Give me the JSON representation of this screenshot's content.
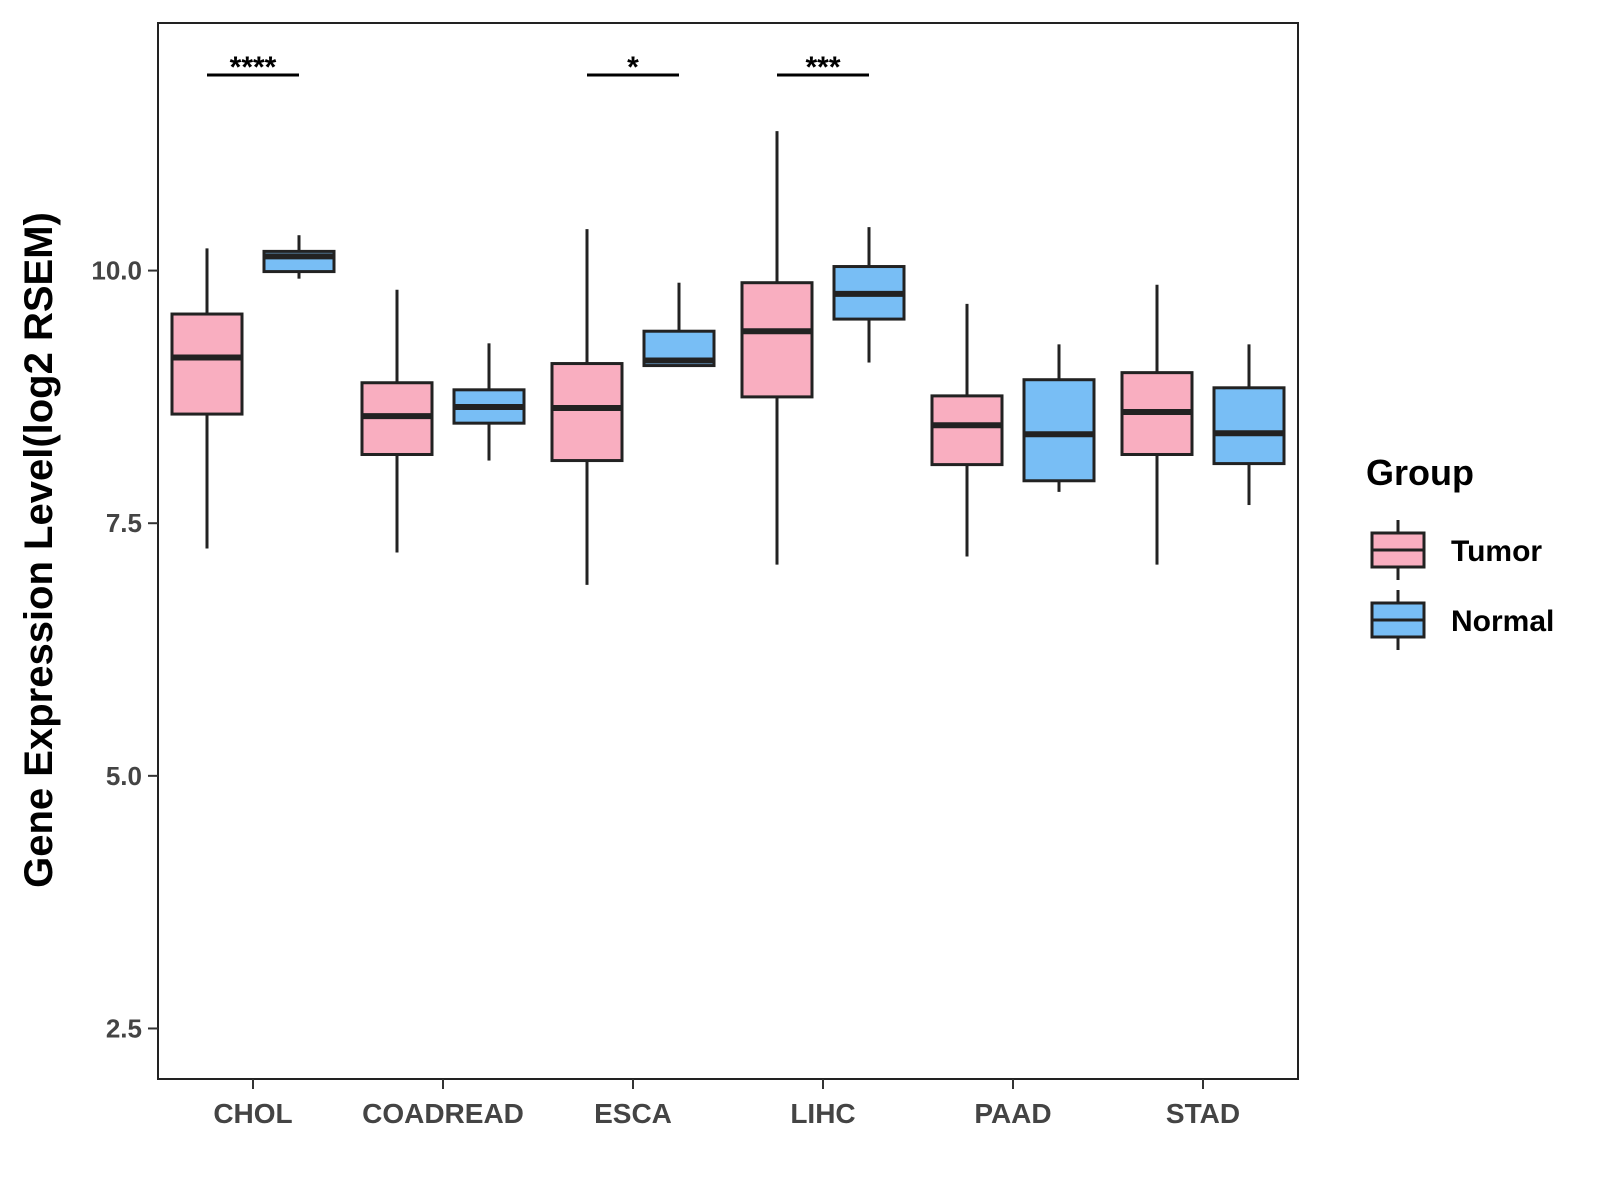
{
  "chart_data": {
    "type": "boxplot",
    "title": "",
    "xlabel": "",
    "ylabel": "Gene Expression Level(log2 RSEM)",
    "ylim": [
      2,
      12.45
    ],
    "yticks": [
      2.5,
      5.0,
      7.5,
      10.0
    ],
    "ytick_labels": [
      "2.5",
      "5.0",
      "7.5",
      "10.0"
    ],
    "grid": false,
    "categories": [
      "CHOL",
      "COADREAD",
      "ESCA",
      "LIHC",
      "PAAD",
      "STAD"
    ],
    "legend": {
      "title": "Group",
      "placement": "right",
      "entries": [
        {
          "name": "Tumor",
          "color": "#F9AEC0"
        },
        {
          "name": "Normal",
          "color": "#78BEF5"
        }
      ]
    },
    "series": [
      {
        "name": "Tumor",
        "color": "#F9AEC0",
        "boxes": [
          {
            "min": 7.25,
            "q1": 8.58,
            "median": 9.14,
            "q3": 9.57,
            "max": 10.22
          },
          {
            "min": 7.21,
            "q1": 8.18,
            "median": 8.56,
            "q3": 8.89,
            "max": 9.81
          },
          {
            "min": 6.89,
            "q1": 8.12,
            "median": 8.64,
            "q3": 9.08,
            "max": 10.41
          },
          {
            "min": 7.09,
            "q1": 8.75,
            "median": 9.4,
            "q3": 9.88,
            "max": 11.38
          },
          {
            "min": 7.17,
            "q1": 8.08,
            "median": 8.47,
            "q3": 8.76,
            "max": 9.67
          },
          {
            "min": 7.09,
            "q1": 8.18,
            "median": 8.6,
            "q3": 8.99,
            "max": 9.86
          }
        ]
      },
      {
        "name": "Normal",
        "color": "#78BEF5",
        "boxes": [
          {
            "min": 9.92,
            "q1": 9.99,
            "median": 10.14,
            "q3": 10.19,
            "max": 10.35
          },
          {
            "min": 8.12,
            "q1": 8.49,
            "median": 8.65,
            "q3": 8.82,
            "max": 9.28
          },
          {
            "min": 9.06,
            "q1": 9.06,
            "median": 9.11,
            "q3": 9.4,
            "max": 9.88
          },
          {
            "min": 9.09,
            "q1": 9.52,
            "median": 9.77,
            "q3": 10.04,
            "max": 10.43
          },
          {
            "min": 7.81,
            "q1": 7.92,
            "median": 8.38,
            "q3": 8.92,
            "max": 9.27
          },
          {
            "min": 7.68,
            "q1": 8.09,
            "median": 8.39,
            "q3": 8.84,
            "max": 9.27
          }
        ]
      }
    ],
    "annotations": [
      {
        "category": "CHOL",
        "label": "****"
      },
      {
        "category": "ESCA",
        "label": "*"
      },
      {
        "category": "LIHC",
        "label": "***"
      }
    ]
  }
}
